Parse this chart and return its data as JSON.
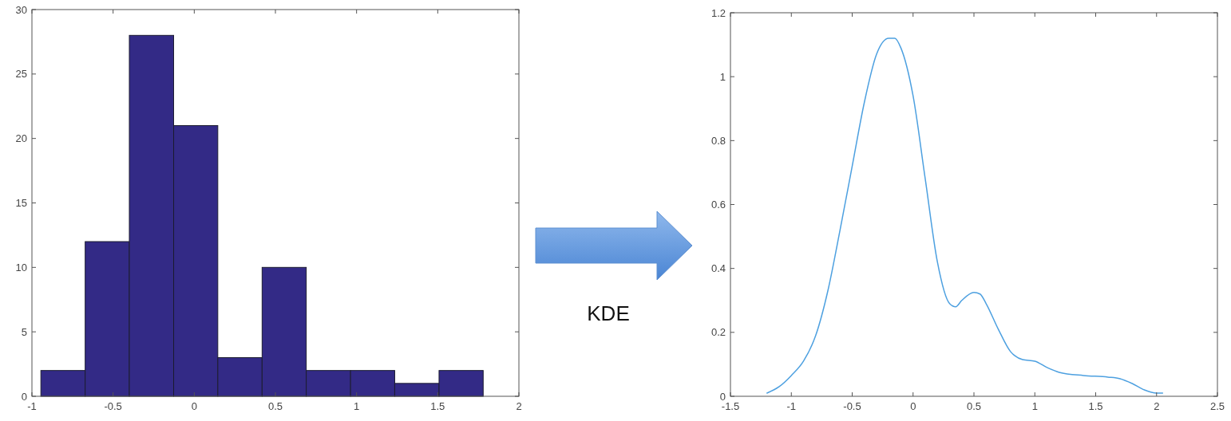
{
  "chart_data": [
    {
      "type": "histogram",
      "bins": [
        -0.945,
        -0.672,
        -0.4,
        -0.127,
        0.145,
        0.418,
        0.69,
        0.963,
        1.235,
        1.508,
        1.78
      ],
      "values": [
        2,
        12,
        28,
        21,
        3,
        10,
        2,
        2,
        1,
        2
      ],
      "color": "#332a86",
      "xlim": [
        -1,
        2
      ],
      "xticks": [
        -1,
        -0.5,
        0,
        0.5,
        1,
        1.5,
        2
      ],
      "ylim": [
        0,
        30
      ],
      "yticks": [
        0,
        5,
        10,
        15,
        20,
        25,
        30
      ],
      "grid": false
    },
    {
      "type": "line",
      "annotations": [
        "KDE"
      ],
      "x": [
        -1.2,
        -1.1,
        -1.0,
        -0.9,
        -0.8,
        -0.7,
        -0.6,
        -0.5,
        -0.4,
        -0.3,
        -0.2,
        -0.15,
        -0.1,
        0,
        0.1,
        0.2,
        0.3,
        0.35,
        0.4,
        0.5,
        0.55,
        0.6,
        0.7,
        0.8,
        0.9,
        1.0,
        1.1,
        1.2,
        1.4,
        1.6,
        1.7,
        1.8,
        1.9,
        2.0,
        2.05
      ],
      "series": [
        {
          "color": "#4da0e0",
          "values": [
            0.01,
            0.03,
            0.065,
            0.11,
            0.19,
            0.33,
            0.52,
            0.72,
            0.92,
            1.07,
            1.12,
            1.12,
            1.09,
            0.94,
            0.68,
            0.42,
            0.29,
            0.28,
            0.3,
            0.325,
            0.32,
            0.29,
            0.21,
            0.14,
            0.115,
            0.11,
            0.09,
            0.075,
            0.065,
            0.06,
            0.055,
            0.04,
            0.02,
            0.01,
            0.01
          ]
        }
      ],
      "xlim": [
        -1.5,
        2.5
      ],
      "xticks": [
        -1.5,
        -1,
        -0.5,
        0,
        0.5,
        1,
        1.5,
        2,
        2.5
      ],
      "ylim": [
        0,
        1.2
      ],
      "yticks": [
        0,
        0.2,
        0.4,
        0.6,
        0.8,
        1,
        1.2
      ],
      "grid": false,
      "marker": "none",
      "line_style": "solid"
    }
  ]
}
